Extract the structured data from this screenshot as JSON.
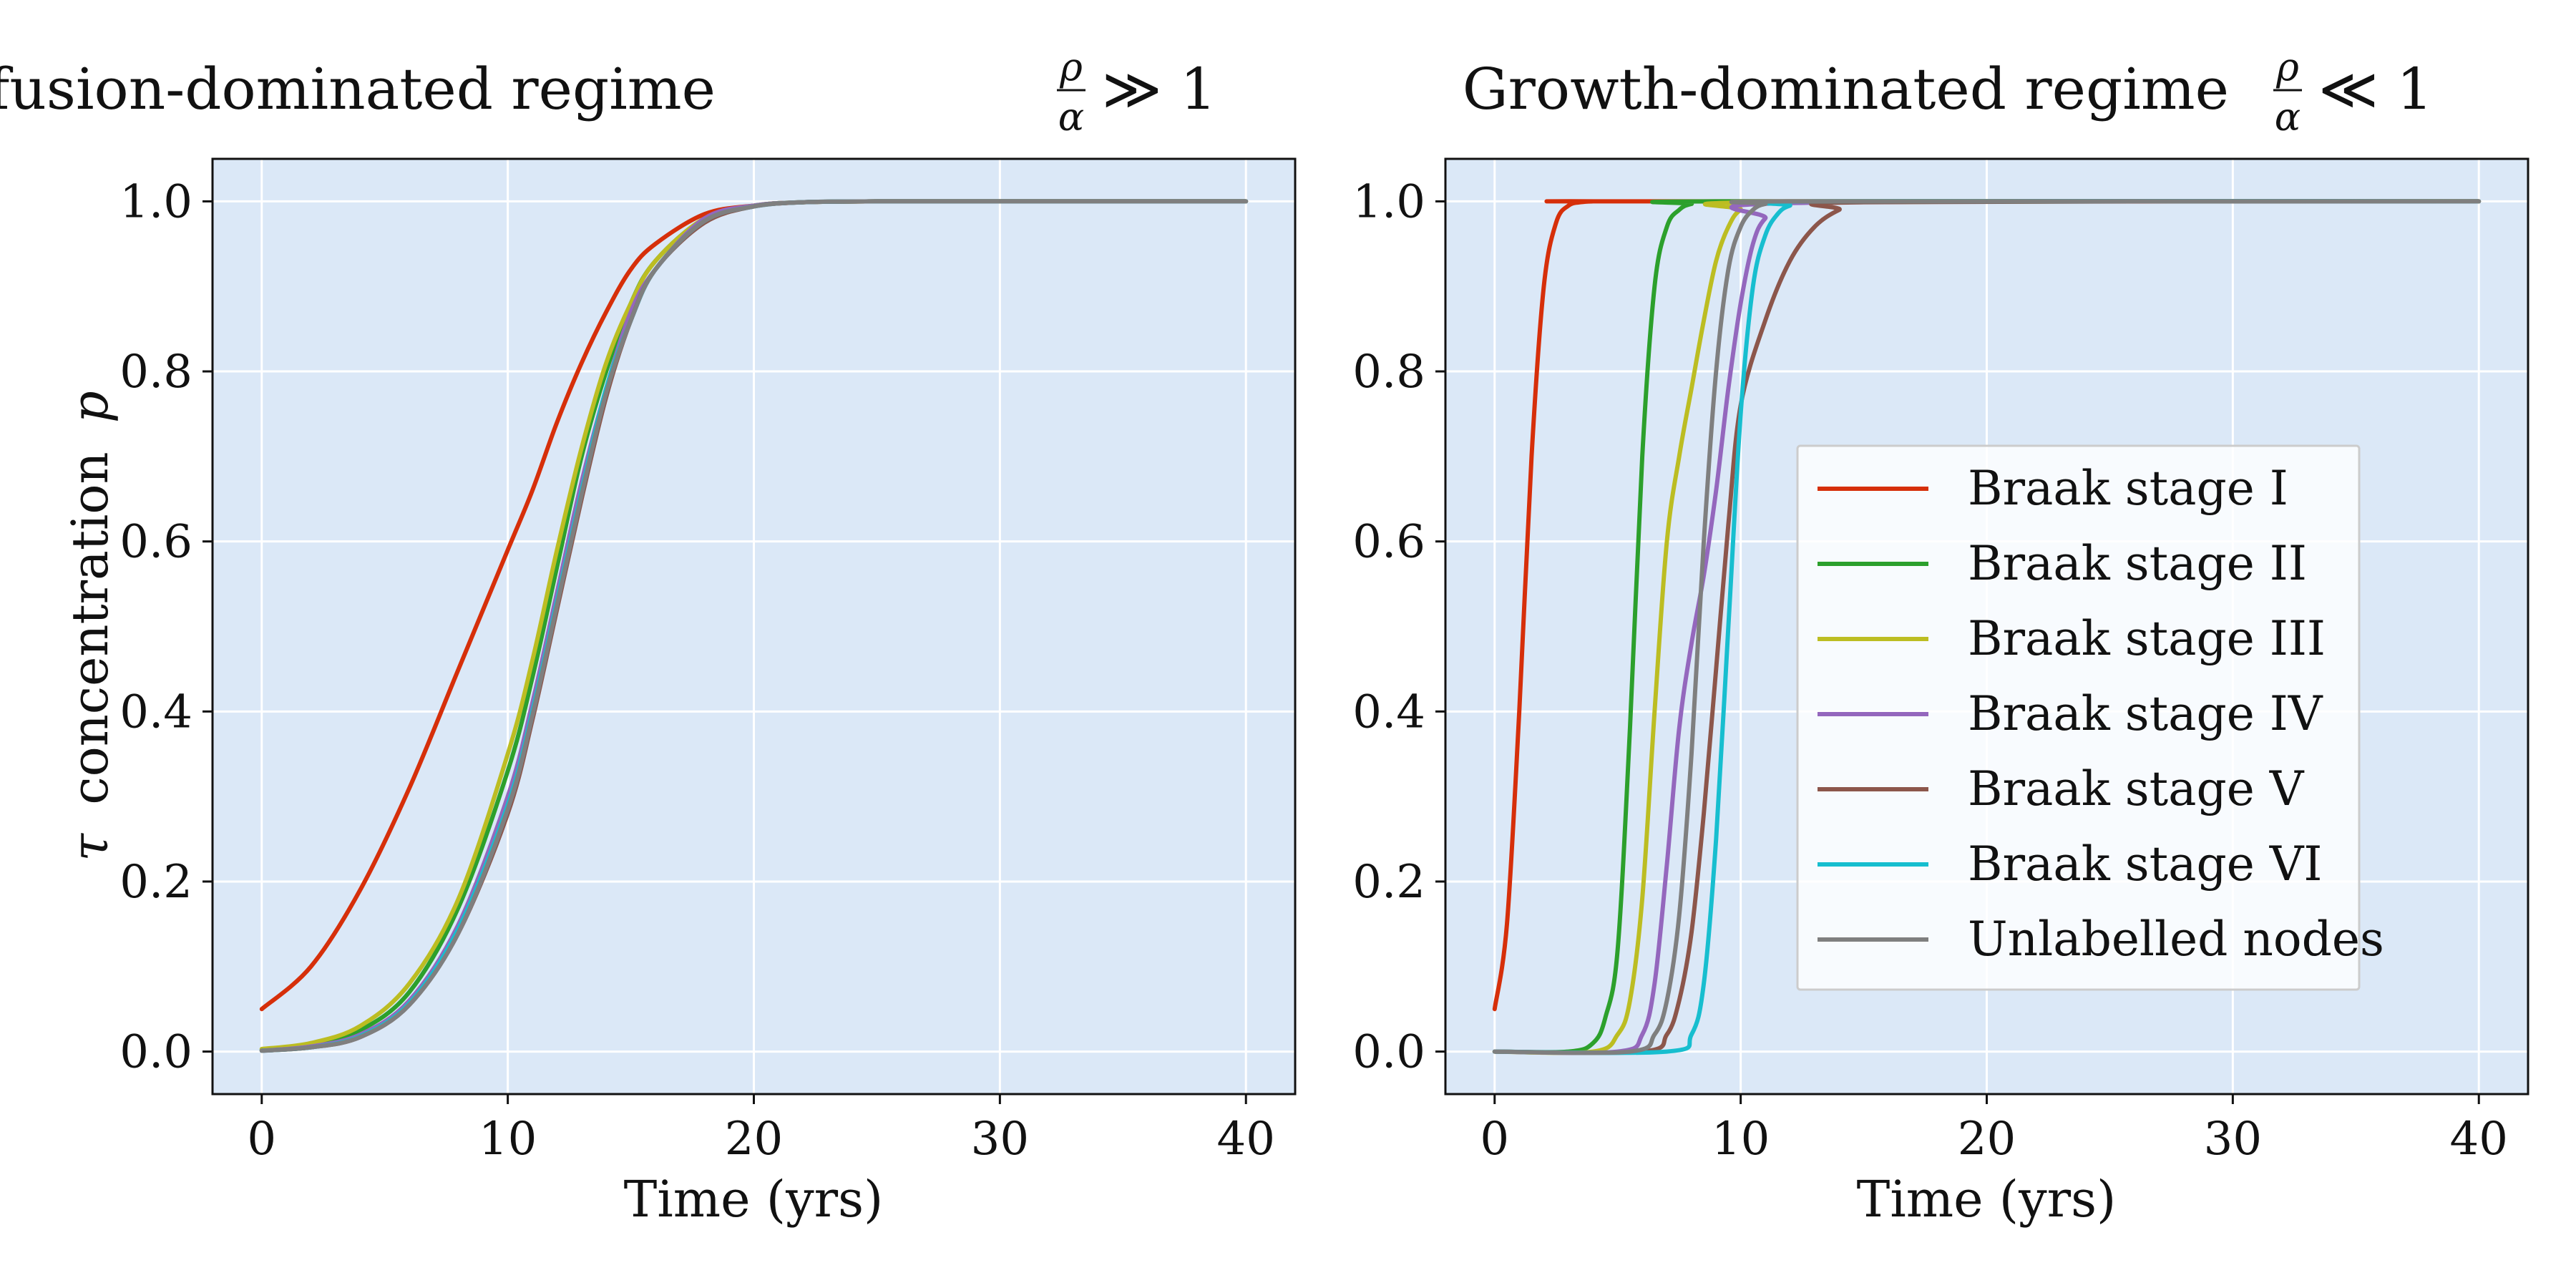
{
  "colors": {
    "plot_bg": "#dbe8f7",
    "grid": "#ffffff",
    "series": {
      "Braak stage I": "#d62f0a",
      "Braak stage II": "#2ca02c",
      "Braak stage III": "#bcbd22",
      "Braak stage IV": "#9467bd",
      "Braak stage V": "#8c564b",
      "Braak stage VI": "#17becf",
      "Unlabelled nodes": "#7f7f7f"
    }
  },
  "chart_data": [
    {
      "type": "line",
      "title_prefix": "Diffusion-dominated regime",
      "title_frac_num": "ρ",
      "title_frac_den": "α",
      "title_suffix": "≫ 1",
      "xlabel": "Time (yrs)",
      "ylabel_symbol": "τ",
      "ylabel_text": "concentration",
      "ylabel_var": "p",
      "xlim": [
        -2,
        42
      ],
      "ylim": [
        -0.05,
        1.05
      ],
      "xticks": [
        0,
        10,
        20,
        30,
        40
      ],
      "yticks": [
        "0.0",
        "0.2",
        "0.4",
        "0.6",
        "0.8",
        "1.0"
      ],
      "grid": true,
      "legend": false,
      "x": [
        0,
        2,
        4,
        6,
        8,
        10,
        11,
        12,
        13,
        14,
        15,
        16,
        18,
        20,
        22,
        25,
        30,
        35,
        40
      ],
      "series": [
        {
          "key": "Braak stage I",
          "values": [
            0.05,
            0.1,
            0.19,
            0.31,
            0.45,
            0.59,
            0.66,
            0.74,
            0.81,
            0.87,
            0.92,
            0.95,
            0.985,
            0.995,
            0.999,
            1.0,
            1.0,
            1.0,
            1.0
          ]
        },
        {
          "key": "Braak stage II",
          "values": [
            0.002,
            0.008,
            0.025,
            0.07,
            0.17,
            0.33,
            0.44,
            0.57,
            0.7,
            0.8,
            0.88,
            0.93,
            0.98,
            0.995,
            0.999,
            1.0,
            1.0,
            1.0,
            1.0
          ]
        },
        {
          "key": "Braak stage III",
          "values": [
            0.003,
            0.01,
            0.03,
            0.08,
            0.18,
            0.35,
            0.46,
            0.59,
            0.71,
            0.81,
            0.88,
            0.93,
            0.98,
            0.995,
            0.999,
            1.0,
            1.0,
            1.0,
            1.0
          ]
        },
        {
          "key": "Braak stage IV",
          "values": [
            0.001,
            0.006,
            0.02,
            0.06,
            0.15,
            0.3,
            0.41,
            0.54,
            0.67,
            0.78,
            0.87,
            0.92,
            0.98,
            0.995,
            0.999,
            1.0,
            1.0,
            1.0,
            1.0
          ]
        },
        {
          "key": "Braak stage V",
          "values": [
            0.001,
            0.005,
            0.017,
            0.055,
            0.14,
            0.28,
            0.39,
            0.52,
            0.65,
            0.77,
            0.86,
            0.92,
            0.975,
            0.994,
            0.999,
            1.0,
            1.0,
            1.0,
            1.0
          ]
        },
        {
          "key": "Braak stage VI",
          "values": [
            0.001,
            0.005,
            0.018,
            0.057,
            0.145,
            0.29,
            0.4,
            0.53,
            0.66,
            0.78,
            0.86,
            0.92,
            0.977,
            0.994,
            0.999,
            1.0,
            1.0,
            1.0,
            1.0
          ]
        },
        {
          "key": "Unlabelled nodes",
          "values": [
            0.001,
            0.005,
            0.017,
            0.055,
            0.14,
            0.285,
            0.395,
            0.525,
            0.655,
            0.775,
            0.86,
            0.92,
            0.977,
            0.994,
            0.999,
            1.0,
            1.0,
            1.0,
            1.0
          ]
        }
      ]
    },
    {
      "type": "line",
      "title_prefix": "Growth-dominated regime",
      "title_frac_num": "ρ",
      "title_frac_den": "α",
      "title_suffix": "≪ 1",
      "xlabel": "Time (yrs)",
      "xlim": [
        -2,
        42
      ],
      "ylim": [
        -0.05,
        1.05
      ],
      "xticks": [
        0,
        10,
        20,
        30,
        40
      ],
      "yticks": [
        "0.0",
        "0.2",
        "0.4",
        "0.6",
        "0.8",
        "1.0"
      ],
      "grid": true,
      "legend": true,
      "legend_position": "center-right",
      "series": [
        {
          "key": "Braak stage I",
          "x": [
            0,
            0.5,
            1,
            1.5,
            2,
            2.5,
            3,
            3.5,
            4,
            5,
            40
          ],
          "values": [
            0.05,
            0.15,
            0.4,
            0.7,
            0.9,
            0.975,
            0.995,
            0.999,
            1.0,
            1.0,
            1.0
          ]
        },
        {
          "key": "Braak stage II",
          "x": [
            0,
            3,
            4,
            4.5,
            5,
            5.5,
            6,
            6.5,
            7,
            7.5,
            8,
            9,
            40
          ],
          "values": [
            0.0,
            0.0,
            0.01,
            0.04,
            0.12,
            0.38,
            0.7,
            0.9,
            0.97,
            0.99,
            0.997,
            1.0,
            1.0
          ]
        },
        {
          "key": "Braak stage III",
          "x": [
            0,
            4,
            5,
            5.5,
            6,
            6.5,
            7,
            7.5,
            8,
            8.5,
            9,
            9.5,
            10,
            11,
            40
          ],
          "values": [
            0.0,
            0.0,
            0.02,
            0.06,
            0.18,
            0.4,
            0.6,
            0.7,
            0.78,
            0.86,
            0.93,
            0.97,
            0.99,
            0.999,
            1.0
          ]
        },
        {
          "key": "Braak stage IV",
          "x": [
            0,
            5,
            6,
            6.5,
            7,
            7.5,
            8,
            8.5,
            9,
            9.5,
            10,
            10.5,
            11,
            12,
            40
          ],
          "values": [
            0.0,
            0.0,
            0.02,
            0.08,
            0.22,
            0.38,
            0.48,
            0.56,
            0.66,
            0.78,
            0.88,
            0.95,
            0.98,
            0.998,
            1.0
          ]
        },
        {
          "key": "Braak stage V",
          "x": [
            0,
            6,
            7,
            7.5,
            8,
            8.5,
            9,
            9.5,
            10,
            11,
            12,
            13,
            14,
            15,
            40
          ],
          "values": [
            0.0,
            0.0,
            0.02,
            0.06,
            0.14,
            0.28,
            0.45,
            0.62,
            0.76,
            0.86,
            0.93,
            0.97,
            0.99,
            0.999,
            1.0
          ]
        },
        {
          "key": "Braak stage VI",
          "x": [
            0,
            7,
            8,
            8.5,
            9,
            9.5,
            10,
            10.5,
            11,
            11.5,
            12,
            13,
            40
          ],
          "values": [
            0.0,
            0.0,
            0.02,
            0.08,
            0.25,
            0.5,
            0.75,
            0.9,
            0.96,
            0.985,
            0.995,
            1.0,
            1.0
          ]
        },
        {
          "key": "Unlabelled nodes",
          "x": [
            0,
            5.5,
            6.5,
            7,
            7.5,
            8,
            8.5,
            9,
            9.5,
            10,
            10.5,
            11,
            12,
            40
          ],
          "values": [
            0.0,
            0.0,
            0.02,
            0.06,
            0.16,
            0.35,
            0.6,
            0.8,
            0.92,
            0.97,
            0.99,
            0.997,
            1.0,
            1.0
          ]
        }
      ]
    }
  ],
  "legend": {
    "items": [
      "Braak stage I",
      "Braak stage II",
      "Braak stage III",
      "Braak stage IV",
      "Braak stage V",
      "Braak stage VI",
      "Unlabelled nodes"
    ]
  }
}
